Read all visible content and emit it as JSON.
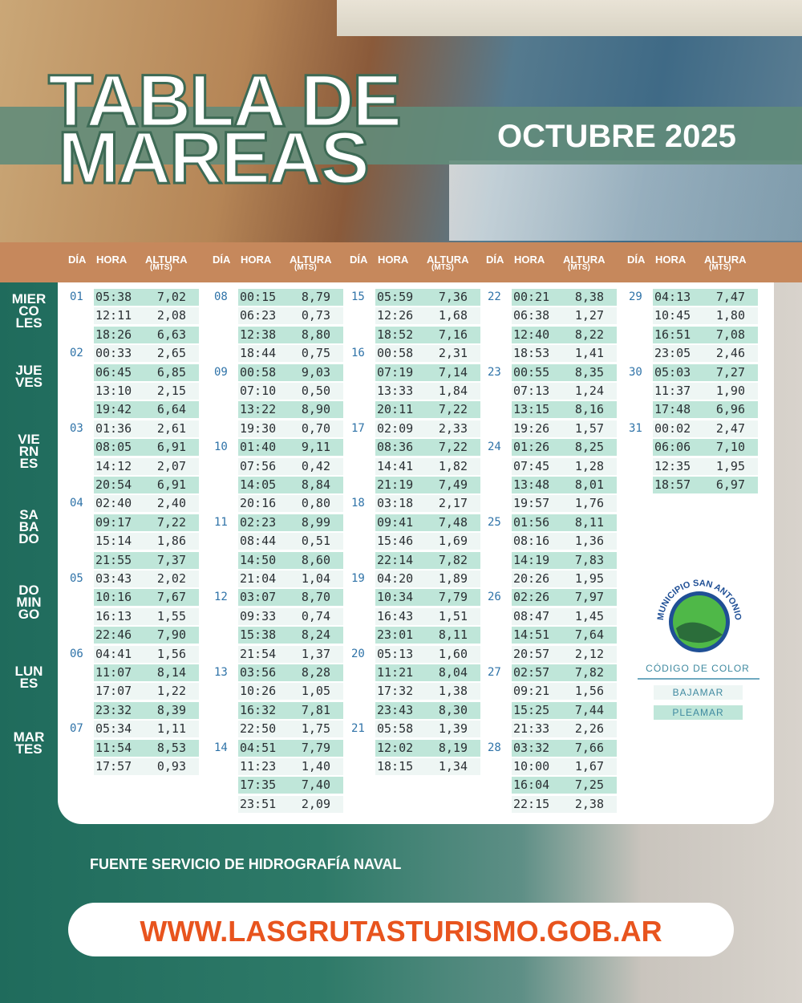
{
  "header": {
    "title_line1": "TABLA DE",
    "title_line2": "MAREAS",
    "month": "OCTUBRE 2025"
  },
  "columns_header": {
    "day": "DÍA",
    "time": "HORA",
    "height": "ALTURA",
    "unit": "(MTS)"
  },
  "weekdays": [
    [
      "MIER",
      "CO",
      "LES"
    ],
    [
      "JUE",
      "VES"
    ],
    [
      "VIE",
      "RN",
      "ES"
    ],
    [
      "SA",
      "BA",
      "DO"
    ],
    [
      "DO",
      "MIN",
      "GO"
    ],
    [
      "LUN",
      "ES"
    ],
    [
      "MAR",
      "TES"
    ]
  ],
  "columns": [
    [
      {
        "day": "01",
        "tides": [
          [
            "05:38",
            "7,02"
          ],
          [
            "12:11",
            "2,08"
          ],
          [
            "18:26",
            "6,63"
          ]
        ]
      },
      {
        "day": "02",
        "tides": [
          [
            "00:33",
            "2,65"
          ],
          [
            "06:45",
            "6,85"
          ],
          [
            "13:10",
            "2,15"
          ],
          [
            "19:42",
            "6,64"
          ]
        ]
      },
      {
        "day": "03",
        "tides": [
          [
            "01:36",
            "2,61"
          ],
          [
            "08:05",
            "6,91"
          ],
          [
            "14:12",
            "2,07"
          ],
          [
            "20:54",
            "6,91"
          ]
        ]
      },
      {
        "day": "04",
        "tides": [
          [
            "02:40",
            "2,40"
          ],
          [
            "09:17",
            "7,22"
          ],
          [
            "15:14",
            "1,86"
          ],
          [
            "21:55",
            "7,37"
          ]
        ]
      },
      {
        "day": "05",
        "tides": [
          [
            "03:43",
            "2,02"
          ],
          [
            "10:16",
            "7,67"
          ],
          [
            "16:13",
            "1,55"
          ],
          [
            "22:46",
            "7,90"
          ]
        ]
      },
      {
        "day": "06",
        "tides": [
          [
            "04:41",
            "1,56"
          ],
          [
            "11:07",
            "8,14"
          ],
          [
            "17:07",
            "1,22"
          ],
          [
            "23:32",
            "8,39"
          ]
        ]
      },
      {
        "day": "07",
        "tides": [
          [
            "05:34",
            "1,11"
          ],
          [
            "11:54",
            "8,53"
          ],
          [
            "17:57",
            "0,93"
          ]
        ]
      }
    ],
    [
      {
        "day": "08",
        "tides": [
          [
            "00:15",
            "8,79"
          ],
          [
            "06:23",
            "0,73"
          ],
          [
            "12:38",
            "8,80"
          ],
          [
            "18:44",
            "0,75"
          ]
        ]
      },
      {
        "day": "09",
        "tides": [
          [
            "00:58",
            "9,03"
          ],
          [
            "07:10",
            "0,50"
          ],
          [
            "13:22",
            "8,90"
          ],
          [
            "19:30",
            "0,70"
          ]
        ]
      },
      {
        "day": "10",
        "tides": [
          [
            "01:40",
            "9,11"
          ],
          [
            "07:56",
            "0,42"
          ],
          [
            "14:05",
            "8,84"
          ],
          [
            "20:16",
            "0,80"
          ]
        ]
      },
      {
        "day": "11",
        "tides": [
          [
            "02:23",
            "8,99"
          ],
          [
            "08:44",
            "0,51"
          ],
          [
            "14:50",
            "8,60"
          ],
          [
            "21:04",
            "1,04"
          ]
        ]
      },
      {
        "day": "12",
        "tides": [
          [
            "03:07",
            "8,70"
          ],
          [
            "09:33",
            "0,74"
          ],
          [
            "15:38",
            "8,24"
          ],
          [
            "21:54",
            "1,37"
          ]
        ]
      },
      {
        "day": "13",
        "tides": [
          [
            "03:56",
            "8,28"
          ],
          [
            "10:26",
            "1,05"
          ],
          [
            "16:32",
            "7,81"
          ],
          [
            "22:50",
            "1,75"
          ]
        ]
      },
      {
        "day": "14",
        "tides": [
          [
            "04:51",
            "7,79"
          ],
          [
            "11:23",
            "1,40"
          ],
          [
            "17:35",
            "7,40"
          ],
          [
            "23:51",
            "2,09"
          ]
        ]
      }
    ],
    [
      {
        "day": "15",
        "tides": [
          [
            "05:59",
            "7,36"
          ],
          [
            "12:26",
            "1,68"
          ],
          [
            "18:52",
            "7,16"
          ]
        ]
      },
      {
        "day": "16",
        "tides": [
          [
            "00:58",
            "2,31"
          ],
          [
            "07:19",
            "7,14"
          ],
          [
            "13:33",
            "1,84"
          ],
          [
            "20:11",
            "7,22"
          ]
        ]
      },
      {
        "day": "17",
        "tides": [
          [
            "02:09",
            "2,33"
          ],
          [
            "08:36",
            "7,22"
          ],
          [
            "14:41",
            "1,82"
          ],
          [
            "21:19",
            "7,49"
          ]
        ]
      },
      {
        "day": "18",
        "tides": [
          [
            "03:18",
            "2,17"
          ],
          [
            "09:41",
            "7,48"
          ],
          [
            "15:46",
            "1,69"
          ],
          [
            "22:14",
            "7,82"
          ]
        ]
      },
      {
        "day": "19",
        "tides": [
          [
            "04:20",
            "1,89"
          ],
          [
            "10:34",
            "7,79"
          ],
          [
            "16:43",
            "1,51"
          ],
          [
            "23:01",
            "8,11"
          ]
        ]
      },
      {
        "day": "20",
        "tides": [
          [
            "05:13",
            "1,60"
          ],
          [
            "11:21",
            "8,04"
          ],
          [
            "17:32",
            "1,38"
          ],
          [
            "23:43",
            "8,30"
          ]
        ]
      },
      {
        "day": "21",
        "tides": [
          [
            "05:58",
            "1,39"
          ],
          [
            "12:02",
            "8,19"
          ],
          [
            "18:15",
            "1,34"
          ]
        ]
      }
    ],
    [
      {
        "day": "22",
        "tides": [
          [
            "00:21",
            "8,38"
          ],
          [
            "06:38",
            "1,27"
          ],
          [
            "12:40",
            "8,22"
          ],
          [
            "18:53",
            "1,41"
          ]
        ]
      },
      {
        "day": "23",
        "tides": [
          [
            "00:55",
            "8,35"
          ],
          [
            "07:13",
            "1,24"
          ],
          [
            "13:15",
            "8,16"
          ],
          [
            "19:26",
            "1,57"
          ]
        ]
      },
      {
        "day": "24",
        "tides": [
          [
            "01:26",
            "8,25"
          ],
          [
            "07:45",
            "1,28"
          ],
          [
            "13:48",
            "8,01"
          ],
          [
            "19:57",
            "1,76"
          ]
        ]
      },
      {
        "day": "25",
        "tides": [
          [
            "01:56",
            "8,11"
          ],
          [
            "08:16",
            "1,36"
          ],
          [
            "14:19",
            "7,83"
          ],
          [
            "20:26",
            "1,95"
          ]
        ]
      },
      {
        "day": "26",
        "tides": [
          [
            "02:26",
            "7,97"
          ],
          [
            "08:47",
            "1,45"
          ],
          [
            "14:51",
            "7,64"
          ],
          [
            "20:57",
            "2,12"
          ]
        ]
      },
      {
        "day": "27",
        "tides": [
          [
            "02:57",
            "7,82"
          ],
          [
            "09:21",
            "1,56"
          ],
          [
            "15:25",
            "7,44"
          ],
          [
            "21:33",
            "2,26"
          ]
        ]
      },
      {
        "day": "28",
        "tides": [
          [
            "03:32",
            "7,66"
          ],
          [
            "10:00",
            "1,67"
          ],
          [
            "16:04",
            "7,25"
          ],
          [
            "22:15",
            "2,38"
          ]
        ]
      }
    ],
    [
      {
        "day": "29",
        "tides": [
          [
            "04:13",
            "7,47"
          ],
          [
            "10:45",
            "1,80"
          ],
          [
            "16:51",
            "7,08"
          ],
          [
            "23:05",
            "2,46"
          ]
        ]
      },
      {
        "day": "30",
        "tides": [
          [
            "05:03",
            "7,27"
          ],
          [
            "11:37",
            "1,90"
          ],
          [
            "17:48",
            "6,96"
          ]
        ]
      },
      {
        "day": "31",
        "tides": [
          [
            "00:02",
            "2,47"
          ],
          [
            "06:06",
            "7,10"
          ],
          [
            "12:35",
            "1,95"
          ],
          [
            "18:57",
            "6,97"
          ]
        ]
      }
    ]
  ],
  "logo": "MUNICIPIO SAN ANTONIO",
  "legend": {
    "title": "CÓDIGO DE COLOR",
    "low": "BAJAMAR",
    "high": "PLEAMAR"
  },
  "footer": {
    "source": "FUENTE SERVICIO DE HIDROGRAFÍA NAVAL",
    "url": "WWW.LASGRUTASTURISMO.GOB.AR"
  }
}
